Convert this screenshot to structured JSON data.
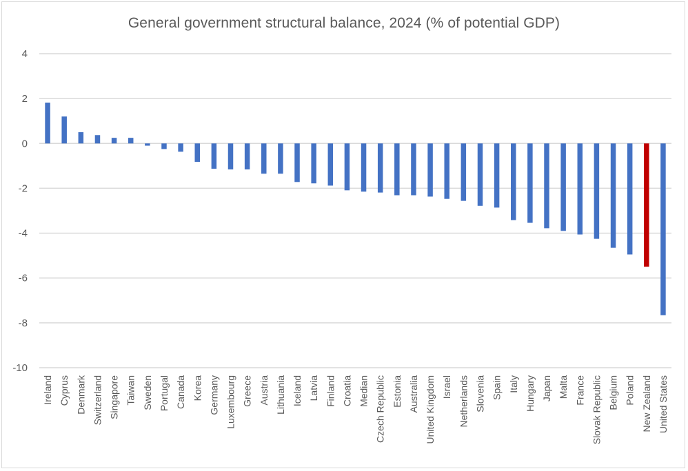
{
  "chart_data": {
    "type": "bar",
    "title": "General government structural balance, 2024 (% of potential GDP)",
    "xlabel": "",
    "ylabel": "",
    "ylim": [
      -10,
      4
    ],
    "yticks": [
      4,
      2,
      0,
      -2,
      -4,
      -6,
      -8,
      -10
    ],
    "grid": true,
    "legend": "none",
    "categories": [
      "Ireland",
      "Cyprus",
      "Denmark",
      "Switzerland",
      "Singapore",
      "Taiwan",
      "Sweden",
      "Portugal",
      "Canada",
      "Korea",
      "Germany",
      "Luxembourg",
      "Greece",
      "Austria",
      "Lithuania",
      "Iceland",
      "Latvia",
      "Finland",
      "Croatia",
      "Median",
      "Czech Republic",
      "Estonia",
      "Australia",
      "United Kingdom",
      "Israel",
      "Netherlands",
      "Slovenia",
      "Spain",
      "Italy",
      "Hungary",
      "Japan",
      "Malta",
      "France",
      "Slovak Republic",
      "Belgium",
      "Poland",
      "New Zealand",
      "United States"
    ],
    "values": [
      1.82,
      1.2,
      0.5,
      0.37,
      0.25,
      0.25,
      -0.1,
      -0.25,
      -0.37,
      -0.82,
      -1.13,
      -1.16,
      -1.16,
      -1.35,
      -1.35,
      -1.72,
      -1.78,
      -1.88,
      -2.09,
      -2.15,
      -2.19,
      -2.31,
      -2.31,
      -2.37,
      -2.47,
      -2.56,
      -2.78,
      -2.86,
      -3.42,
      -3.54,
      -3.78,
      -3.9,
      -4.06,
      -4.25,
      -4.65,
      -4.95,
      -5.5,
      -7.66
    ],
    "highlight": "New Zealand",
    "colors": {
      "bar": "#4472c4",
      "highlight": "#c00000",
      "grid": "#d9d9d9",
      "text": "#595959"
    }
  }
}
